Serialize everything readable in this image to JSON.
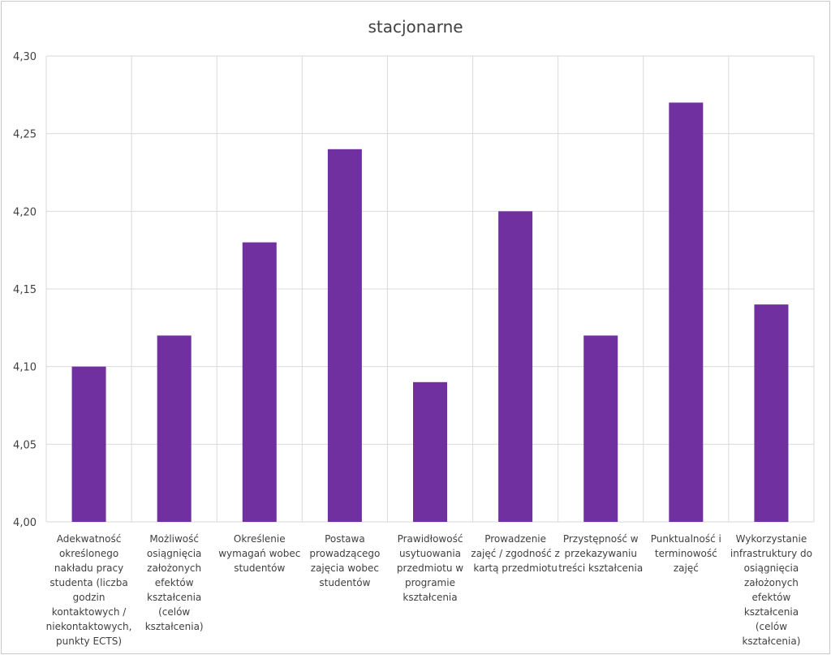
{
  "chart_data": {
    "type": "bar",
    "title": "stacjonarne",
    "xlabel": "",
    "ylabel": "",
    "ylim": [
      4.0,
      4.3
    ],
    "yticks": [
      "4,00",
      "4,05",
      "4,10",
      "4,15",
      "4,20",
      "4,25",
      "4,30"
    ],
    "ytick_values": [
      4.0,
      4.05,
      4.1,
      4.15,
      4.2,
      4.25,
      4.3
    ],
    "grid": true,
    "legend": "none",
    "bar_color": "#7030a0",
    "categories": [
      [
        "Adekwatność",
        "określonego",
        "nakładu pracy",
        "studenta (liczba",
        "godzin",
        "kontaktowych /",
        "niekontaktowych,",
        "punkty ECTS)"
      ],
      [
        "Możliwość",
        "osiągnięcia",
        "założonych",
        "efektów",
        "kształcenia",
        "(celów",
        "kształcenia)"
      ],
      [
        "Określenie",
        "wymagań wobec",
        "studentów"
      ],
      [
        "Postawa",
        "prowadzącego",
        "zajęcia wobec",
        "studentów"
      ],
      [
        "Prawidłowość",
        "usytuowania",
        "przedmiotu w",
        "programie",
        "kształcenia"
      ],
      [
        "Prowadzenie",
        "zajęć / zgodność z",
        "kartą przedmiotu"
      ],
      [
        "Przystępność w",
        "przekazywaniu",
        "treści kształcenia"
      ],
      [
        "Punktualność i",
        "terminowość",
        "zajęć"
      ],
      [
        "Wykorzystanie",
        "infrastruktury do",
        "osiągnięcia",
        "założonych",
        "efektów",
        "kształcenia",
        "(celów",
        "kształcenia)"
      ]
    ],
    "values": [
      4.1,
      4.12,
      4.18,
      4.24,
      4.09,
      4.2,
      4.12,
      4.27,
      4.14
    ]
  }
}
